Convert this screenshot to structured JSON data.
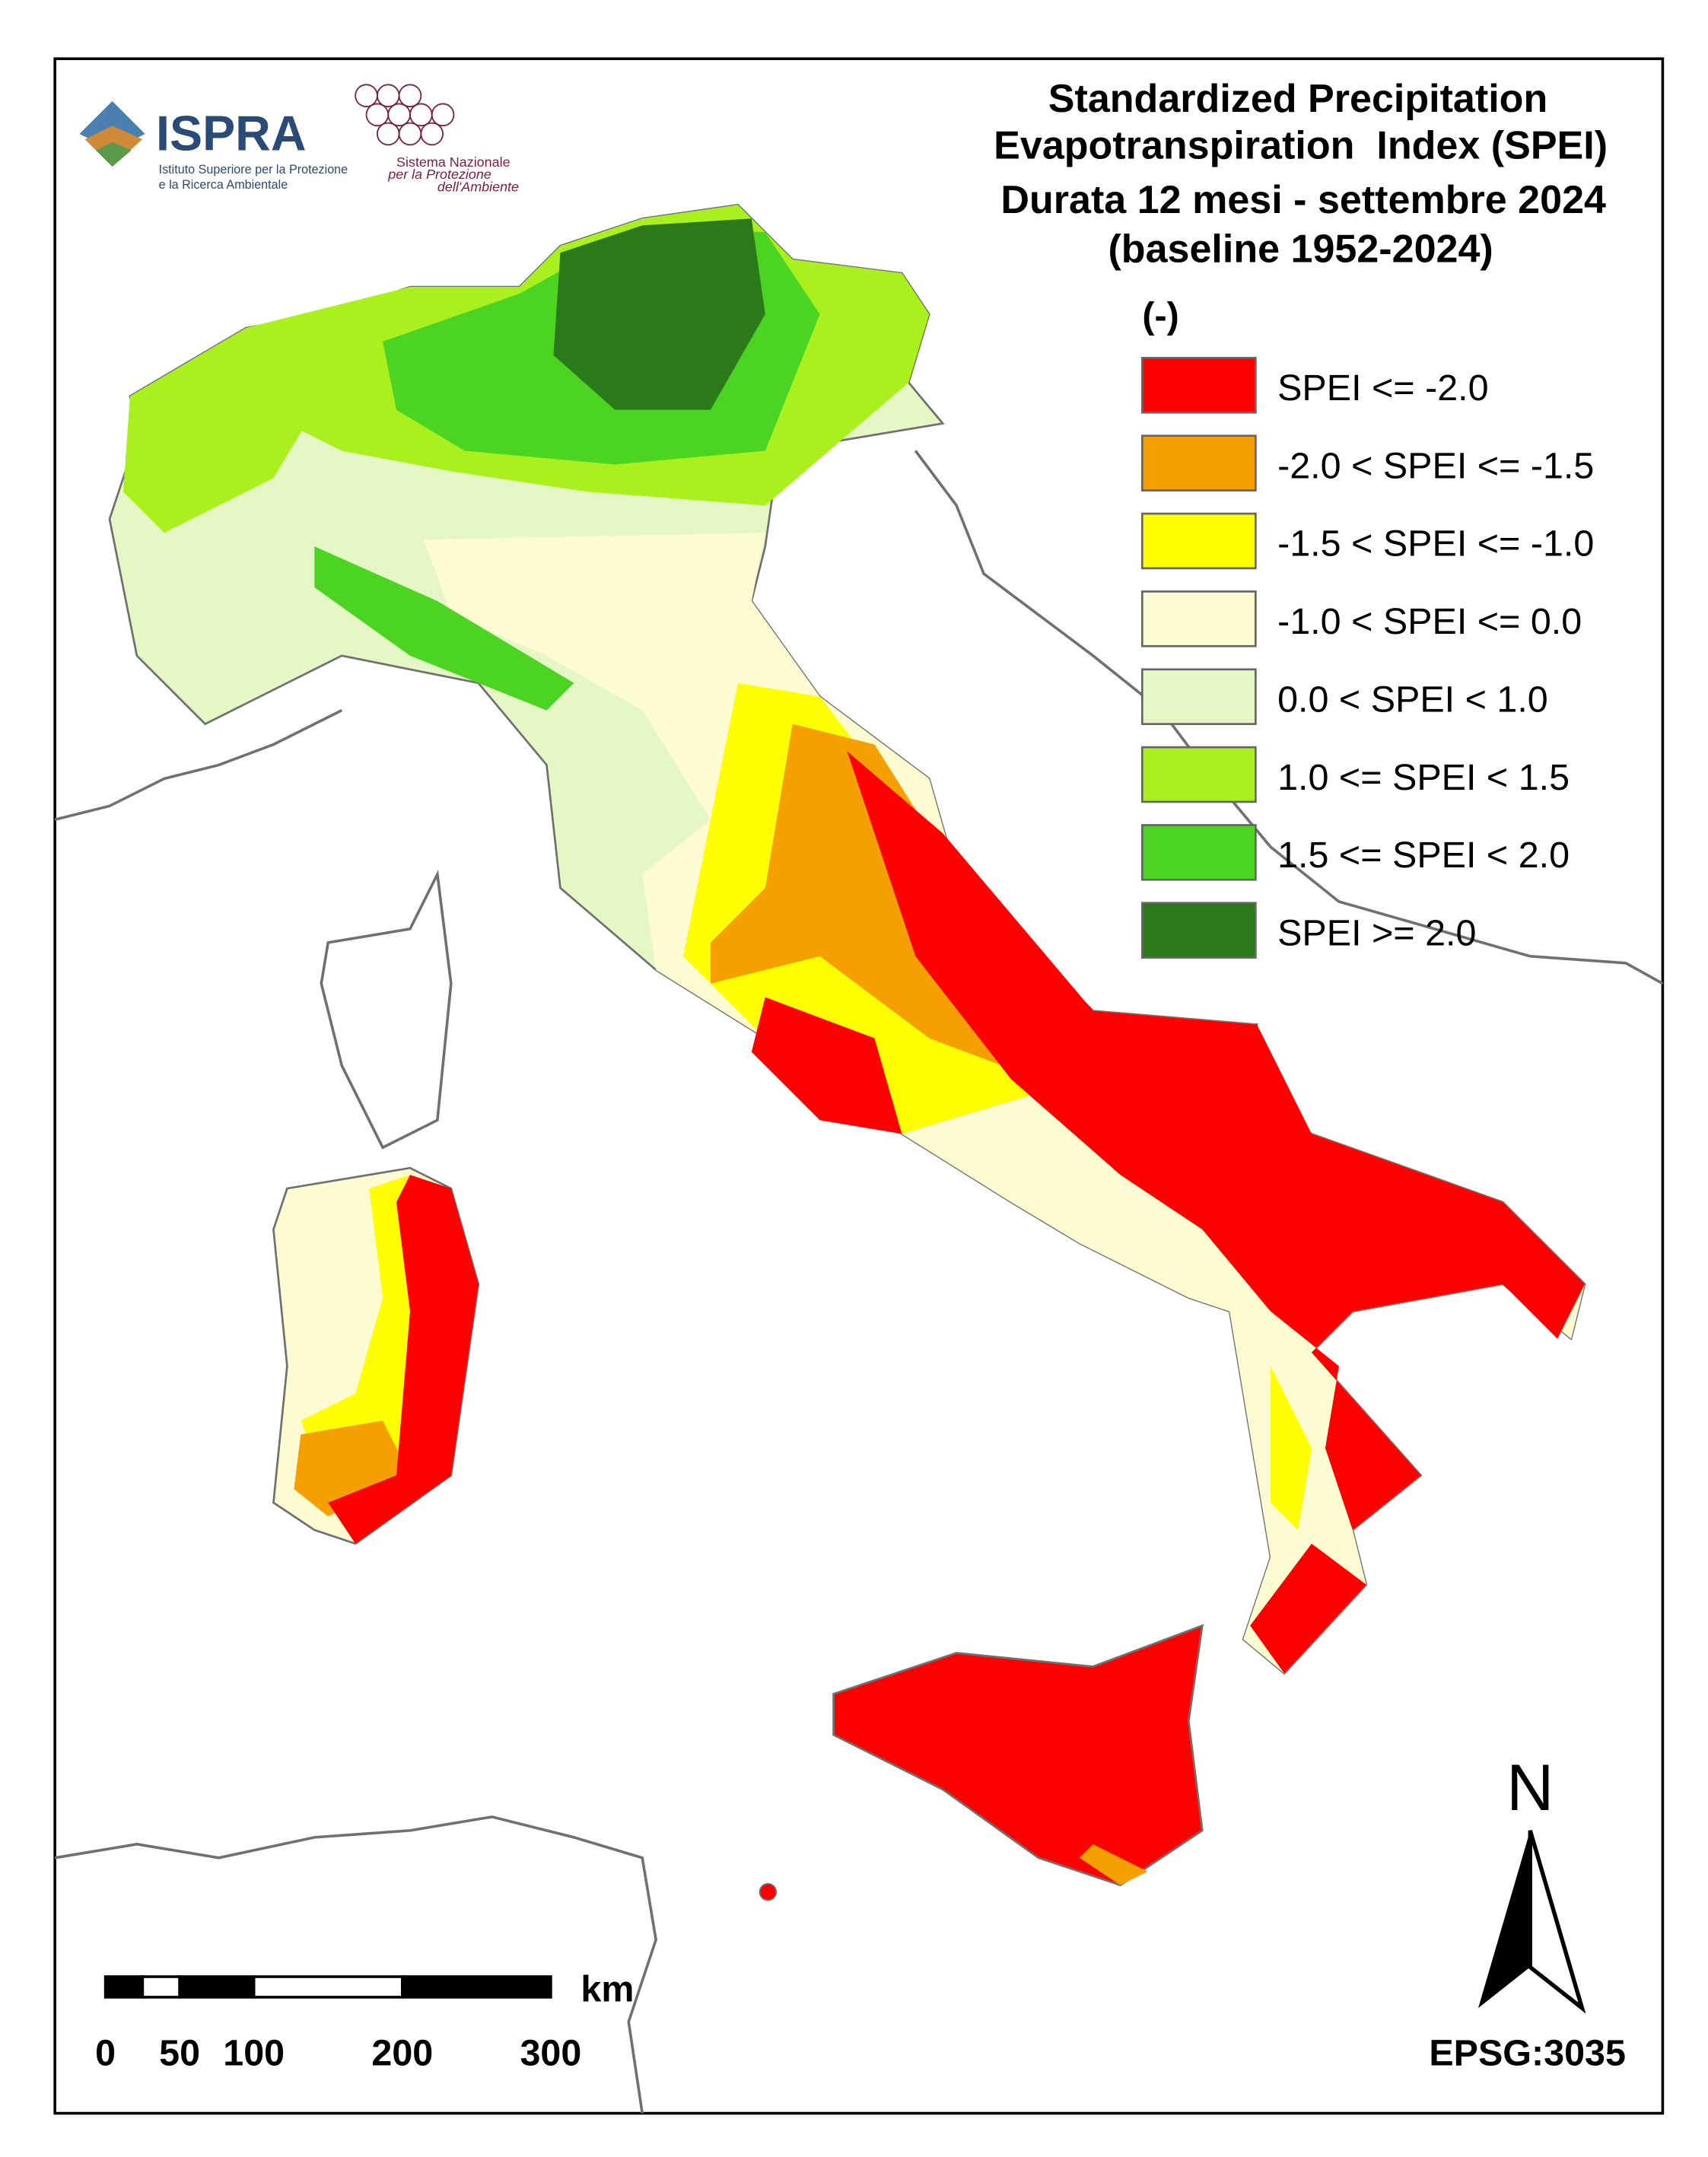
{
  "header": {
    "title": [
      "Standardized Precipitation",
      "Evapotranspiration  Index (SPEI)",
      "Durata 12 mesi - settembre 2024",
      "(baseline 1952-2024)"
    ]
  },
  "logos": {
    "ispra": {
      "name": "ISPRA",
      "subtitle": [
        "Istituto Superiore per la Protezione",
        "e la Ricerca Ambientale"
      ]
    },
    "snpa": {
      "text": [
        "Sistema Nazionale",
        "per la Protezione",
        "dell'Ambiente"
      ]
    }
  },
  "legend": {
    "title": "(-)",
    "items": [
      {
        "label": "SPEI <= -2.0",
        "color": "#ff0000"
      },
      {
        "label": "-2.0 < SPEI <= -1.5",
        "color": "#f5a000"
      },
      {
        "label": "-1.5 < SPEI <= -1.0",
        "color": "#ffff00"
      },
      {
        "label": "-1.0 < SPEI <= 0.0",
        "color": "#fdfbd2"
      },
      {
        "label": "0.0 < SPEI < 1.0",
        "color": "#e4f7c4"
      },
      {
        "label": "1.0 <= SPEI < 1.5",
        "color": "#aaf01e"
      },
      {
        "label": "1.5 <= SPEI < 2.0",
        "color": "#4cd423"
      },
      {
        "label": "SPEI >= 2.0",
        "color": "#2a7a1a"
      }
    ]
  },
  "scalebar": {
    "unit": "km",
    "ticks": [
      0,
      50,
      100,
      200,
      300
    ]
  },
  "north": "N",
  "crs": "EPSG:3035"
}
